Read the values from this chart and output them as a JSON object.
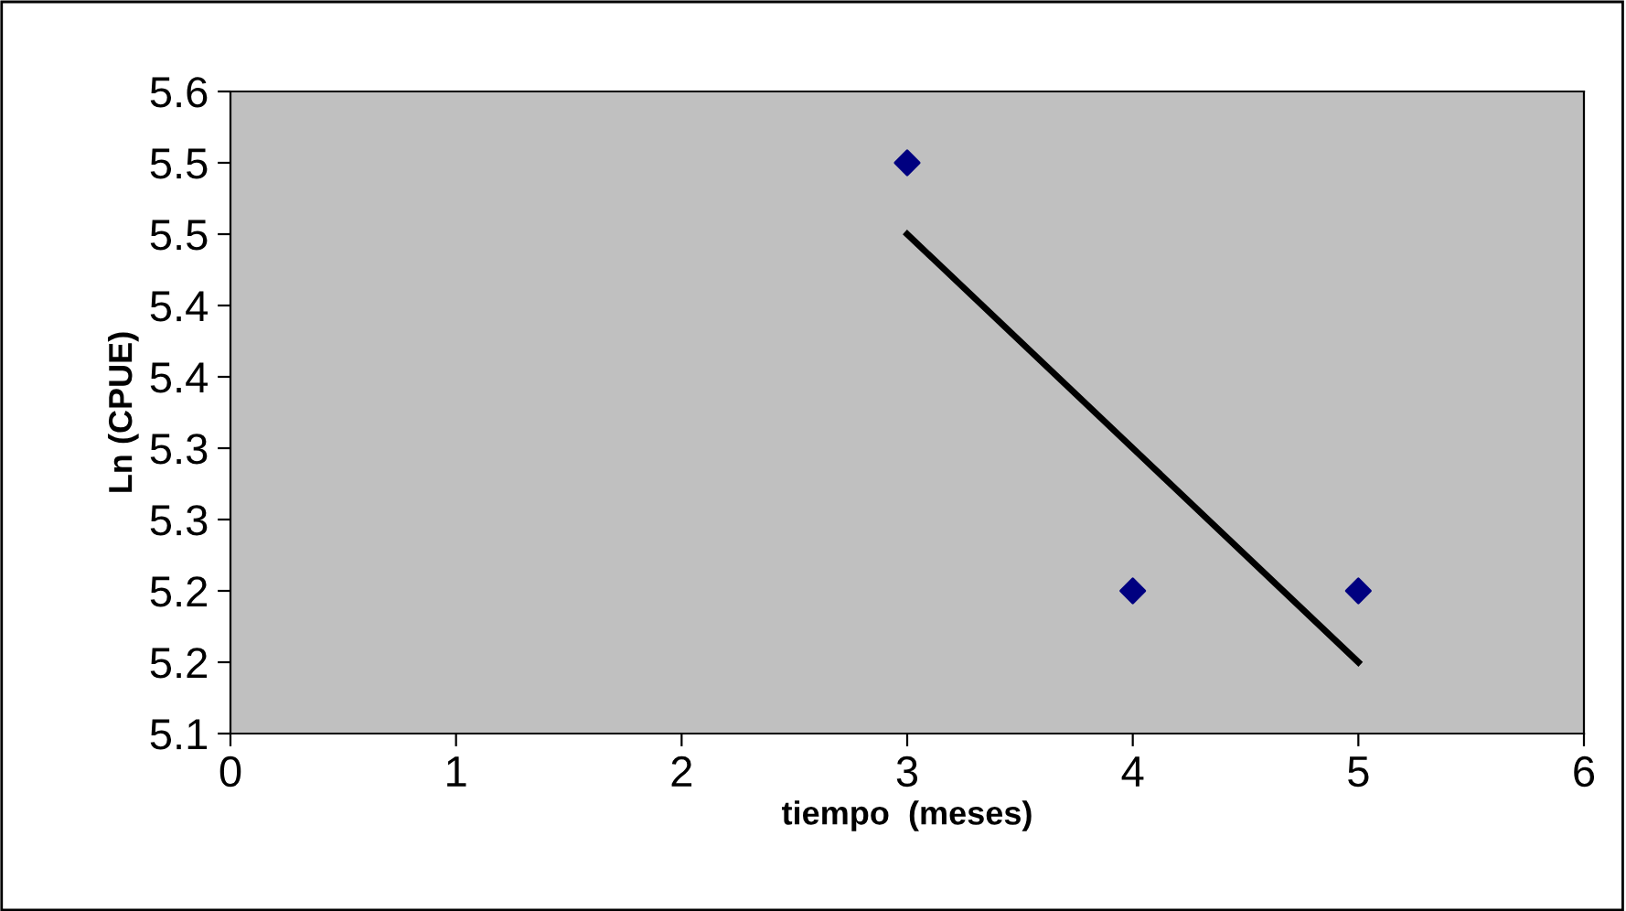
{
  "chart_data": {
    "type": "scatter",
    "xlabel": "tiempo  (meses)",
    "ylabel": "Ln (CPUE)",
    "xlim": [
      0,
      6
    ],
    "xticks": [
      0,
      1,
      2,
      3,
      4,
      5,
      6
    ],
    "ylim": [
      5.1,
      5.55
    ],
    "yticks": [
      {
        "value": 5.1,
        "label": "5.1"
      },
      {
        "value": 5.15,
        "label": "5.2"
      },
      {
        "value": 5.2,
        "label": "5.2"
      },
      {
        "value": 5.25,
        "label": "5.3"
      },
      {
        "value": 5.3,
        "label": "5.3"
      },
      {
        "value": 5.35,
        "label": "5.4"
      },
      {
        "value": 5.4,
        "label": "5.4"
      },
      {
        "value": 5.45,
        "label": "5.5"
      },
      {
        "value": 5.5,
        "label": "5.5"
      },
      {
        "value": 5.55,
        "label": "5.6"
      }
    ],
    "grid": false,
    "marker": "diamond",
    "series": [
      {
        "color": "#000080",
        "x": [
          3,
          4,
          5
        ],
        "values": [
          5.5,
          5.2,
          5.2
        ]
      },
      {
        "type": "line",
        "color": "#000000",
        "x": [
          3,
          5
        ],
        "values": [
          5.45,
          5.15
        ],
        "marker": "none",
        "line_style": "solid"
      }
    ]
  }
}
